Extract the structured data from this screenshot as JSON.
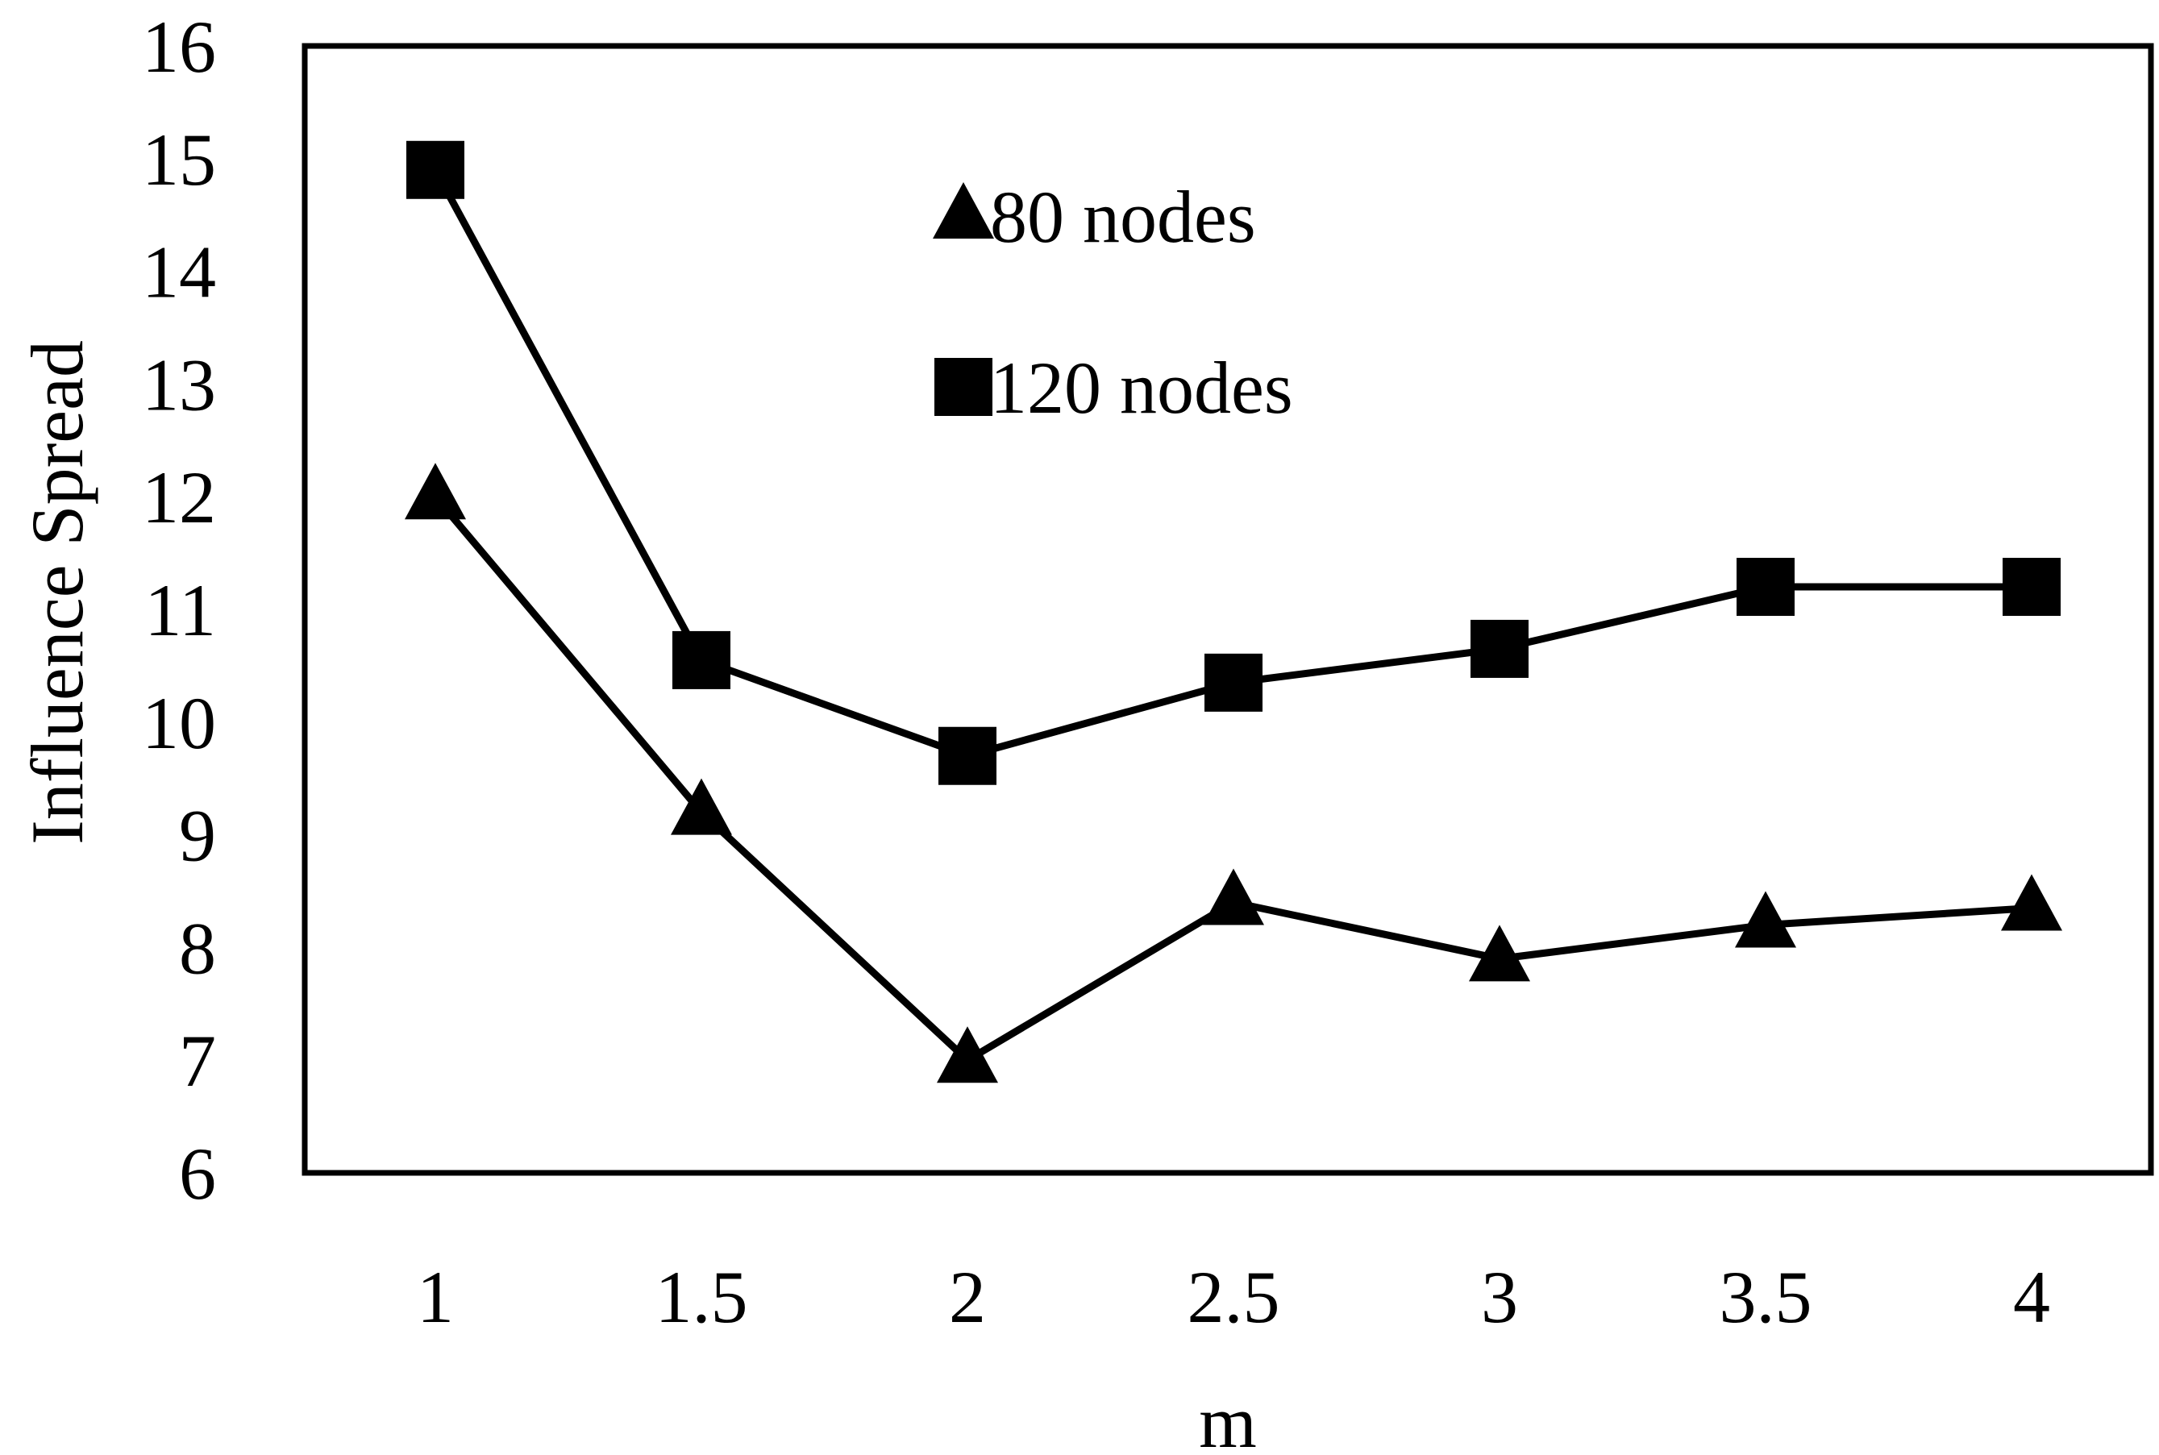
{
  "chart_data": {
    "type": "line",
    "title": "",
    "xlabel": "m",
    "ylabel": "Influence Spread",
    "categories": [
      "1",
      "1.5",
      "2",
      "2.5",
      "3",
      "3.5",
      "4"
    ],
    "x": [
      1,
      1.5,
      2,
      2.5,
      3,
      3.5,
      4
    ],
    "ylim": [
      6,
      16
    ],
    "yticks": [
      "6",
      "7",
      "8",
      "9",
      "10",
      "11",
      "12",
      "13",
      "14",
      "15",
      "16"
    ],
    "grid": false,
    "legend_position": "top-center",
    "series": [
      {
        "name": "80 nodes",
        "marker": "triangle",
        "color": "#000000",
        "values": [
          12.0,
          9.2,
          7.0,
          8.4,
          7.9,
          8.2,
          8.35
        ]
      },
      {
        "name": "120 nodes",
        "marker": "square",
        "color": "#000000",
        "values": [
          14.9,
          10.55,
          9.7,
          10.35,
          10.65,
          11.2,
          11.2
        ]
      }
    ]
  }
}
